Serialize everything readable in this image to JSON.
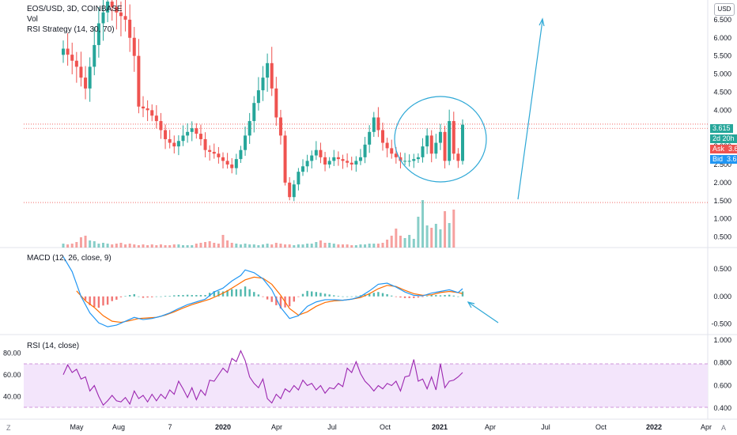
{
  "header": {
    "symbol": "EOS/USD, 3D, COINBASE",
    "volume_label": "Vol",
    "strategy_label": "RSI Strategy (14, 30, 70)",
    "currency_button": "USD"
  },
  "macd_label": "MACD (12, 26, close, 9)",
  "rsi_label": "RSI (14, close)",
  "price_tags": {
    "last": "3.615",
    "countdown": "2d 20h",
    "ask_label": "Ask",
    "ask": "3.615",
    "bid_label": "Bid",
    "bid": "3.612"
  },
  "corner": {
    "bottom_left": "Z",
    "bottom_right": "A"
  },
  "colors": {
    "up": "#26a69a",
    "down": "#ef5350",
    "annotation": "#2ea8d6",
    "macd_line": "#2196f3",
    "signal_line": "#ff6d00",
    "rsi_line": "#9c27b0",
    "rsi_band": "#f3e5fb",
    "ask": "#ef5350",
    "bid": "#2196f3",
    "countdown": "#26a69a"
  },
  "chart_data": [
    {
      "type": "candlestick",
      "title": "EOS/USD, 3D, COINBASE",
      "y_ticks": [
        "6.500",
        "6.000",
        "5.500",
        "5.000",
        "4.500",
        "4.000",
        "3.500",
        "3.000",
        "2.500",
        "2.000",
        "1.500",
        "1.000",
        "0.500"
      ],
      "ylim": [
        0.25,
        7.0
      ],
      "x_ticks": [
        "May",
        "Aug",
        "7",
        "2020",
        "Apr",
        "Jul",
        "Oct",
        "2021",
        "Apr",
        "Jul",
        "Oct",
        "2022",
        "Apr"
      ],
      "close_path": [
        [
          0,
          5.7
        ],
        [
          3,
          5.2
        ],
        [
          5,
          4.6
        ],
        [
          8,
          6.4
        ],
        [
          10,
          7.0
        ],
        [
          12,
          6.7
        ],
        [
          14,
          6.5
        ],
        [
          16,
          5.5
        ],
        [
          17,
          4.1
        ],
        [
          19,
          4.0
        ],
        [
          21,
          3.7
        ],
        [
          23,
          3.2
        ],
        [
          25,
          3.0
        ],
        [
          27,
          3.3
        ],
        [
          29,
          3.5
        ],
        [
          31,
          3.2
        ],
        [
          32,
          2.9
        ],
        [
          34,
          2.8
        ],
        [
          36,
          2.6
        ],
        [
          38,
          2.4
        ],
        [
          40,
          2.9
        ],
        [
          42,
          3.7
        ],
        [
          43,
          4.2
        ],
        [
          45,
          4.9
        ],
        [
          46,
          5.3
        ],
        [
          47,
          4.6
        ],
        [
          48,
          3.8
        ],
        [
          49,
          3.3
        ],
        [
          50,
          2.0
        ],
        [
          51,
          1.6
        ],
        [
          53,
          2.3
        ],
        [
          55,
          2.6
        ],
        [
          57,
          2.9
        ],
        [
          59,
          2.5
        ],
        [
          61,
          2.7
        ],
        [
          63,
          2.6
        ],
        [
          65,
          2.5
        ],
        [
          67,
          2.7
        ],
        [
          69,
          3.4
        ],
        [
          70,
          3.8
        ],
        [
          72,
          3.1
        ],
        [
          74,
          2.8
        ],
        [
          76,
          2.6
        ],
        [
          78,
          2.6
        ],
        [
          80,
          2.7
        ],
        [
          82,
          3.3
        ],
        [
          83,
          2.8
        ],
        [
          85,
          3.4
        ],
        [
          86,
          2.6
        ],
        [
          87,
          3.7
        ],
        [
          88,
          2.8
        ],
        [
          89,
          2.6
        ],
        [
          90,
          3.6
        ]
      ],
      "close_path_x_unit": "candle index",
      "horizontal_levels": [
        3.615,
        3.5,
        1.45
      ],
      "volume_bars": [
        0.5,
        0.4,
        0.5,
        0.7,
        1.3,
        1.5,
        0.9,
        0.8,
        0.5,
        0.6,
        0.5,
        0.4,
        0.5,
        0.6,
        0.4,
        0.5,
        0.4,
        0.3,
        0.4,
        0.3,
        0.4,
        0.3,
        0.4,
        0.3,
        0.3,
        0.4,
        0.4,
        0.3,
        0.3,
        0.3,
        0.5,
        0.6,
        0.7,
        0.8,
        0.6,
        0.5,
        1.6,
        0.9,
        0.6,
        0.5,
        0.4,
        0.5,
        0.4,
        0.4,
        0.3,
        0.4,
        0.5,
        0.4,
        0.6,
        0.5,
        0.4,
        0.4,
        0.3,
        0.4,
        0.4,
        0.5,
        0.5,
        0.7,
        0.9,
        0.6,
        0.6,
        0.5,
        0.4,
        0.4,
        0.4,
        0.3,
        0.3,
        0.4,
        0.4,
        0.5,
        0.5,
        0.5,
        0.6,
        1.0,
        1.5,
        2.4,
        1.5,
        1.2,
        1.6,
        1.1,
        3.9,
        6.0,
        2.8,
        2.5,
        3.0,
        2.3,
        4.6,
        3.1,
        4.8
      ]
    },
    {
      "type": "line",
      "title": "MACD (12, 26, close, 9)",
      "y_ticks": [
        "0.500",
        "0.000",
        "-0.500"
      ],
      "ylim": [
        -0.62,
        0.8
      ],
      "macd": [
        [
          0,
          0.72
        ],
        [
          2,
          0.45
        ],
        [
          4,
          0.0
        ],
        [
          6,
          -0.3
        ],
        [
          8,
          -0.48
        ],
        [
          10,
          -0.55
        ],
        [
          12,
          -0.52
        ],
        [
          14,
          -0.45
        ],
        [
          16,
          -0.38
        ],
        [
          18,
          -0.42
        ],
        [
          20,
          -0.4
        ],
        [
          22,
          -0.36
        ],
        [
          24,
          -0.3
        ],
        [
          26,
          -0.22
        ],
        [
          28,
          -0.15
        ],
        [
          30,
          -0.1
        ],
        [
          32,
          -0.05
        ],
        [
          34,
          0.08
        ],
        [
          36,
          0.15
        ],
        [
          38,
          0.28
        ],
        [
          40,
          0.38
        ],
        [
          41,
          0.48
        ],
        [
          43,
          0.43
        ],
        [
          45,
          0.32
        ],
        [
          47,
          0.12
        ],
        [
          49,
          -0.2
        ],
        [
          51,
          -0.4
        ],
        [
          53,
          -0.35
        ],
        [
          55,
          -0.18
        ],
        [
          57,
          -0.1
        ],
        [
          59,
          -0.06
        ],
        [
          61,
          -0.06
        ],
        [
          63,
          -0.07
        ],
        [
          65,
          -0.05
        ],
        [
          67,
          0.0
        ],
        [
          69,
          0.1
        ],
        [
          71,
          0.22
        ],
        [
          73,
          0.24
        ],
        [
          75,
          0.17
        ],
        [
          77,
          0.08
        ],
        [
          79,
          0.02
        ],
        [
          81,
          0.01
        ],
        [
          83,
          0.06
        ],
        [
          85,
          0.09
        ],
        [
          87,
          0.12
        ],
        [
          89,
          0.07
        ],
        [
          90,
          0.14
        ]
      ],
      "signal": [
        [
          3,
          0.1
        ],
        [
          5,
          -0.08
        ],
        [
          7,
          -0.2
        ],
        [
          9,
          -0.35
        ],
        [
          11,
          -0.45
        ],
        [
          13,
          -0.47
        ],
        [
          15,
          -0.44
        ],
        [
          17,
          -0.4
        ],
        [
          19,
          -0.39
        ],
        [
          21,
          -0.38
        ],
        [
          23,
          -0.34
        ],
        [
          25,
          -0.28
        ],
        [
          27,
          -0.21
        ],
        [
          29,
          -0.15
        ],
        [
          31,
          -0.1
        ],
        [
          33,
          -0.05
        ],
        [
          35,
          0.02
        ],
        [
          37,
          0.1
        ],
        [
          39,
          0.2
        ],
        [
          41,
          0.3
        ],
        [
          43,
          0.35
        ],
        [
          45,
          0.33
        ],
        [
          47,
          0.22
        ],
        [
          49,
          0.02
        ],
        [
          51,
          -0.22
        ],
        [
          53,
          -0.34
        ],
        [
          55,
          -0.28
        ],
        [
          57,
          -0.18
        ],
        [
          59,
          -0.11
        ],
        [
          61,
          -0.08
        ],
        [
          63,
          -0.07
        ],
        [
          65,
          -0.05
        ],
        [
          67,
          -0.02
        ],
        [
          69,
          0.05
        ],
        [
          71,
          0.14
        ],
        [
          73,
          0.2
        ],
        [
          75,
          0.18
        ],
        [
          77,
          0.11
        ],
        [
          79,
          0.05
        ],
        [
          81,
          0.02
        ],
        [
          83,
          0.03
        ],
        [
          85,
          0.07
        ],
        [
          87,
          0.09
        ],
        [
          89,
          0.07
        ],
        [
          90,
          0.05
        ]
      ],
      "histogram_colors": "up positive / down negative"
    },
    {
      "type": "line",
      "title": "RSI (14, close)",
      "left_ticks": [
        "80.00",
        "60.00",
        "40.00"
      ],
      "right_ticks": [
        "1.000",
        "0.800",
        "0.600",
        "0.400"
      ],
      "band": [
        30,
        70
      ],
      "ylim": [
        22,
        94
      ],
      "rsi": [
        [
          0,
          60
        ],
        [
          1,
          69
        ],
        [
          2,
          62
        ],
        [
          3,
          65
        ],
        [
          4,
          56
        ],
        [
          5,
          58
        ],
        [
          6,
          45
        ],
        [
          7,
          50
        ],
        [
          8,
          40
        ],
        [
          9,
          32
        ],
        [
          10,
          36
        ],
        [
          11,
          41
        ],
        [
          12,
          36
        ],
        [
          13,
          35
        ],
        [
          14,
          39
        ],
        [
          15,
          33
        ],
        [
          16,
          45
        ],
        [
          17,
          38
        ],
        [
          18,
          41
        ],
        [
          19,
          35
        ],
        [
          20,
          42
        ],
        [
          21,
          36
        ],
        [
          22,
          42
        ],
        [
          23,
          38
        ],
        [
          24,
          46
        ],
        [
          25,
          42
        ],
        [
          26,
          54
        ],
        [
          27,
          47
        ],
        [
          28,
          39
        ],
        [
          29,
          48
        ],
        [
          30,
          37
        ],
        [
          31,
          46
        ],
        [
          32,
          41
        ],
        [
          33,
          55
        ],
        [
          34,
          54
        ],
        [
          35,
          60
        ],
        [
          36,
          66
        ],
        [
          37,
          62
        ],
        [
          38,
          75
        ],
        [
          39,
          72
        ],
        [
          40,
          82
        ],
        [
          41,
          73
        ],
        [
          42,
          58
        ],
        [
          43,
          52
        ],
        [
          44,
          48
        ],
        [
          45,
          56
        ],
        [
          46,
          38
        ],
        [
          47,
          34
        ],
        [
          48,
          42
        ],
        [
          49,
          38
        ],
        [
          50,
          47
        ],
        [
          51,
          44
        ],
        [
          52,
          50
        ],
        [
          53,
          46
        ],
        [
          54,
          55
        ],
        [
          55,
          50
        ],
        [
          56,
          52
        ],
        [
          57,
          46
        ],
        [
          58,
          50
        ],
        [
          59,
          43
        ],
        [
          60,
          48
        ],
        [
          61,
          47
        ],
        [
          62,
          52
        ],
        [
          63,
          49
        ],
        [
          64,
          66
        ],
        [
          65,
          62
        ],
        [
          66,
          72
        ],
        [
          67,
          61
        ],
        [
          68,
          54
        ],
        [
          69,
          50
        ],
        [
          70,
          45
        ],
        [
          71,
          50
        ],
        [
          72,
          47
        ],
        [
          73,
          52
        ],
        [
          74,
          50
        ],
        [
          75,
          54
        ],
        [
          76,
          45
        ],
        [
          77,
          58
        ],
        [
          78,
          59
        ],
        [
          79,
          74
        ],
        [
          80,
          54
        ],
        [
          81,
          56
        ],
        [
          82,
          47
        ],
        [
          83,
          58
        ],
        [
          84,
          46
        ],
        [
          85,
          70
        ],
        [
          86,
          48
        ],
        [
          87,
          54
        ],
        [
          88,
          55
        ],
        [
          89,
          58
        ],
        [
          90,
          62
        ]
      ]
    }
  ]
}
